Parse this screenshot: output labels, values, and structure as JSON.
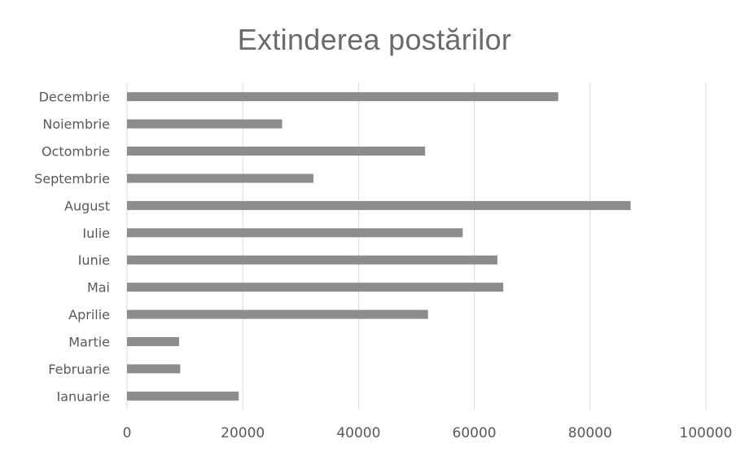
{
  "chart_data": {
    "type": "bar",
    "orientation": "horizontal",
    "title": "Extinderea postărilor",
    "xlabel": "",
    "ylabel": "",
    "categories": [
      "Decembrie",
      "Noiembrie",
      "Octombrie",
      "Septembrie",
      "August",
      "Iulie",
      "Iunie",
      "Mai",
      "Aprilie",
      "Martie",
      "Februarie",
      "Ianuarie"
    ],
    "values": [
      74500,
      26800,
      51500,
      32200,
      87000,
      58000,
      64000,
      65000,
      52000,
      9000,
      9200,
      19300
    ],
    "xlim": [
      0,
      100000
    ],
    "x_ticks": [
      "0",
      "20000",
      "40000",
      "60000",
      "80000",
      "100000"
    ],
    "grid": "vertical",
    "legend": "none",
    "colors": {
      "bar": "#8c8c8c",
      "grid": "#d9d9d9",
      "text": "#595959",
      "title": "#6a6a6a"
    }
  }
}
